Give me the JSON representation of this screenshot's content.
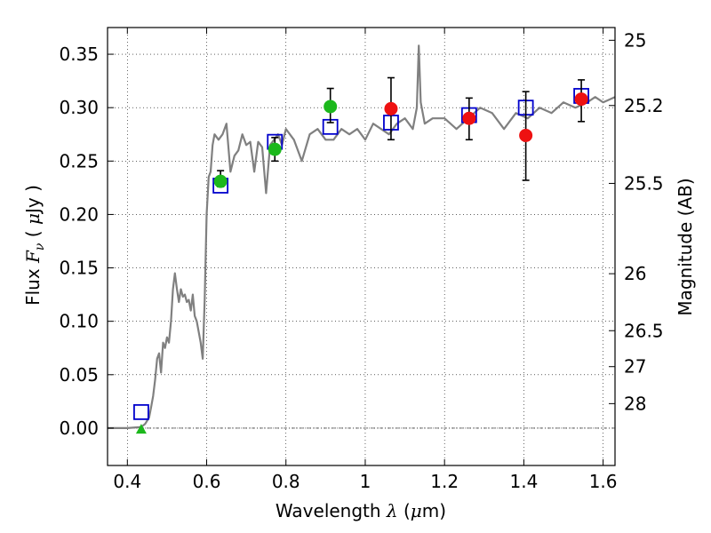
{
  "chart_data": {
    "type": "scatter",
    "title": "",
    "xlabel": {
      "prefix": "Wavelength  ",
      "symbol": "λ",
      "suffix": " (",
      "unit_symbol": "μ",
      "unit_end": "m)"
    },
    "ylabel": {
      "prefix": "Flux  ",
      "symbol": "F",
      "subscript": "ν",
      "middle": "  ( ",
      "unit_symbol": "μ",
      "unit_end": "Jy )"
    },
    "y2label": "Magnitude (AB)",
    "xlim": [
      0.35,
      1.63
    ],
    "ylim": [
      -0.035,
      0.375
    ],
    "grid": true,
    "grid_style": "dotted",
    "xticks": [
      {
        "value": 0.4,
        "label": "0.4"
      },
      {
        "value": 0.6,
        "label": "0.6"
      },
      {
        "value": 0.8,
        "label": "0.8"
      },
      {
        "value": 1.0,
        "label": "1"
      },
      {
        "value": 1.2,
        "label": "1.2"
      },
      {
        "value": 1.4,
        "label": "1.4"
      },
      {
        "value": 1.6,
        "label": "1.6"
      }
    ],
    "yticks": [
      {
        "value": 0.0,
        "label": "0.00"
      },
      {
        "value": 0.05,
        "label": "0.05"
      },
      {
        "value": 0.1,
        "label": "0.10"
      },
      {
        "value": 0.15,
        "label": "0.15"
      },
      {
        "value": 0.2,
        "label": "0.20"
      },
      {
        "value": 0.25,
        "label": "0.25"
      },
      {
        "value": 0.3,
        "label": "0.30"
      },
      {
        "value": 0.35,
        "label": "0.35"
      }
    ],
    "y2ticks": [
      {
        "label": "25"
      },
      {
        "label": "25.2"
      },
      {
        "label": "25.5"
      },
      {
        "label": "26"
      },
      {
        "label": "26.5"
      },
      {
        "label": "27"
      },
      {
        "label": "28"
      }
    ],
    "model_spectrum": {
      "color": "#808080",
      "x": [
        0.35,
        0.4,
        0.435,
        0.445,
        0.455,
        0.46,
        0.465,
        0.47,
        0.475,
        0.48,
        0.485,
        0.49,
        0.495,
        0.5,
        0.505,
        0.51,
        0.515,
        0.52,
        0.525,
        0.53,
        0.535,
        0.54,
        0.545,
        0.55,
        0.555,
        0.56,
        0.565,
        0.57,
        0.575,
        0.58,
        0.585,
        0.59,
        0.595,
        0.6,
        0.605,
        0.61,
        0.615,
        0.62,
        0.63,
        0.64,
        0.65,
        0.66,
        0.67,
        0.68,
        0.69,
        0.7,
        0.71,
        0.72,
        0.73,
        0.74,
        0.75,
        0.76,
        0.77,
        0.78,
        0.79,
        0.8,
        0.82,
        0.84,
        0.86,
        0.88,
        0.9,
        0.92,
        0.94,
        0.96,
        0.98,
        1.0,
        1.02,
        1.04,
        1.06,
        1.08,
        1.1,
        1.12,
        1.13,
        1.135,
        1.14,
        1.15,
        1.17,
        1.2,
        1.23,
        1.26,
        1.29,
        1.32,
        1.35,
        1.38,
        1.41,
        1.44,
        1.47,
        1.5,
        1.53,
        1.56,
        1.58,
        1.6,
        1.63
      ],
      "y": [
        0.0,
        0.0,
        0.001,
        0.004,
        0.01,
        0.02,
        0.03,
        0.045,
        0.065,
        0.07,
        0.052,
        0.08,
        0.075,
        0.085,
        0.08,
        0.1,
        0.13,
        0.145,
        0.13,
        0.118,
        0.13,
        0.123,
        0.125,
        0.118,
        0.12,
        0.11,
        0.125,
        0.105,
        0.1,
        0.09,
        0.08,
        0.065,
        0.12,
        0.2,
        0.235,
        0.24,
        0.265,
        0.275,
        0.27,
        0.275,
        0.285,
        0.24,
        0.255,
        0.26,
        0.275,
        0.265,
        0.268,
        0.24,
        0.268,
        0.263,
        0.22,
        0.265,
        0.27,
        0.275,
        0.265,
        0.28,
        0.27,
        0.25,
        0.275,
        0.28,
        0.27,
        0.27,
        0.28,
        0.275,
        0.28,
        0.27,
        0.285,
        0.28,
        0.275,
        0.285,
        0.29,
        0.28,
        0.3,
        0.358,
        0.305,
        0.285,
        0.29,
        0.29,
        0.28,
        0.29,
        0.3,
        0.295,
        0.28,
        0.295,
        0.29,
        0.3,
        0.295,
        0.305,
        0.3,
        0.305,
        0.31,
        0.305,
        0.31
      ]
    },
    "series": [
      {
        "marker": "square",
        "color": "#0000cc",
        "x": [
          0.435,
          0.635,
          0.772,
          0.912,
          1.065,
          1.262,
          1.405,
          1.545
        ],
        "y": [
          0.015,
          0.227,
          0.268,
          0.282,
          0.286,
          0.293,
          0.3,
          0.311
        ]
      },
      {
        "marker": "circle",
        "color": "#1cb81c",
        "x": [
          0.635,
          0.772,
          0.912
        ],
        "y": [
          0.231,
          0.261,
          0.301
        ],
        "yerr_low": [
          0.226,
          0.25,
          0.286
        ],
        "yerr_high": [
          0.241,
          0.272,
          0.318
        ]
      },
      {
        "marker": "circle",
        "color": "#ee1111",
        "x": [
          1.065,
          1.262,
          1.405,
          1.545
        ],
        "y": [
          0.299,
          0.29,
          0.274,
          0.308
        ],
        "yerr_low": [
          0.27,
          0.27,
          0.232,
          0.287
        ],
        "yerr_high": [
          0.328,
          0.309,
          0.315,
          0.326
        ]
      },
      {
        "marker": "triangle",
        "color": "#1cb81c",
        "x": [
          0.435
        ],
        "y": [
          -0.001
        ]
      }
    ]
  }
}
